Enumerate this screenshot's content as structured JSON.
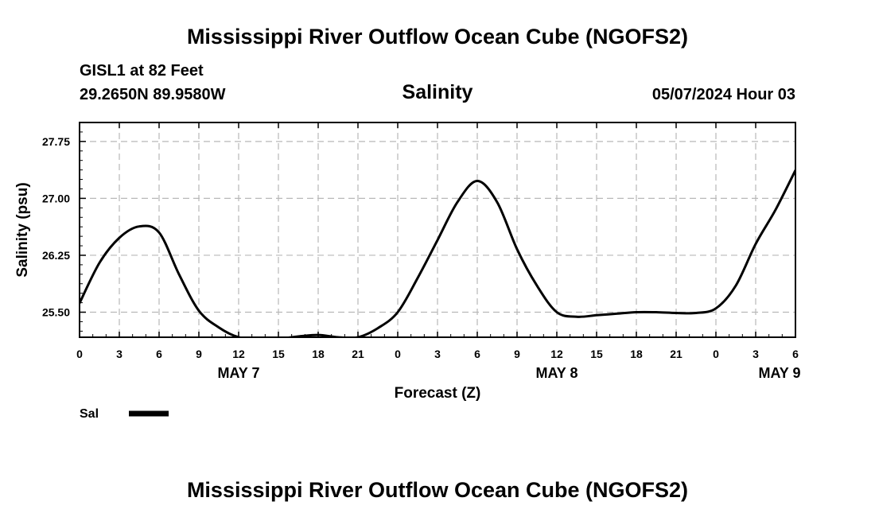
{
  "title": "Mississippi River Outflow Ocean Cube (NGOFS2)",
  "footer_title": "Mississippi River Outflow Ocean Cube (NGOFS2)",
  "station": "GISL1 at 82 Feet",
  "coords": "29.2650N  89.9580W",
  "param": "Salinity",
  "datetime": "05/07/2024 Hour 03",
  "legend_label": "Sal",
  "colors": {
    "line": "#000000",
    "grid": "#b8b8b8",
    "background": "#ffffff"
  },
  "chart_data": {
    "type": "line",
    "title": "Salinity",
    "xlabel": "Forecast (Z)",
    "ylabel": "Salinity (psu)",
    "xlim": [
      0,
      54
    ],
    "ylim": [
      25.17,
      28.0
    ],
    "x_ticks": [
      0,
      3,
      6,
      9,
      12,
      15,
      18,
      21,
      24,
      27,
      30,
      33,
      36,
      39,
      42,
      45,
      48,
      51,
      54
    ],
    "x_tick_labels": [
      "0",
      "3",
      "6",
      "9",
      "12",
      "15",
      "18",
      "21",
      "0",
      "3",
      "6",
      "9",
      "12",
      "15",
      "18",
      "21",
      "0",
      "3",
      "6"
    ],
    "y_ticks": [
      25.5,
      26.25,
      27.0,
      27.75
    ],
    "y_tick_labels": [
      "25.50",
      "26.25",
      "27.00",
      "27.75"
    ],
    "day_labels": [
      {
        "x": 12,
        "label": "MAY 7"
      },
      {
        "x": 36,
        "label": "MAY 8"
      },
      {
        "x": 52.8,
        "label": "MAY 9"
      }
    ],
    "grid": true,
    "legend": "bottom-left",
    "series": [
      {
        "name": "Sal",
        "x": [
          0,
          1.5,
          3,
          4.5,
          6,
          7.5,
          9,
          10.5,
          12,
          13.5,
          15,
          16.5,
          18,
          19.5,
          21,
          22.5,
          24,
          25.5,
          27,
          28.5,
          30,
          31.5,
          33,
          34.5,
          36,
          37.5,
          39,
          40.5,
          42,
          43.5,
          45,
          46.5,
          48,
          49.5,
          51,
          52.5,
          54
        ],
        "values": [
          25.62,
          26.15,
          26.48,
          26.63,
          26.55,
          26.0,
          25.52,
          25.3,
          25.17,
          25.15,
          25.15,
          25.18,
          25.2,
          25.17,
          25.17,
          25.29,
          25.5,
          25.95,
          26.45,
          26.95,
          27.23,
          26.95,
          26.33,
          25.85,
          25.5,
          25.44,
          25.46,
          25.48,
          25.5,
          25.5,
          25.49,
          25.49,
          25.55,
          25.85,
          26.4,
          26.85,
          27.37
        ]
      }
    ]
  }
}
